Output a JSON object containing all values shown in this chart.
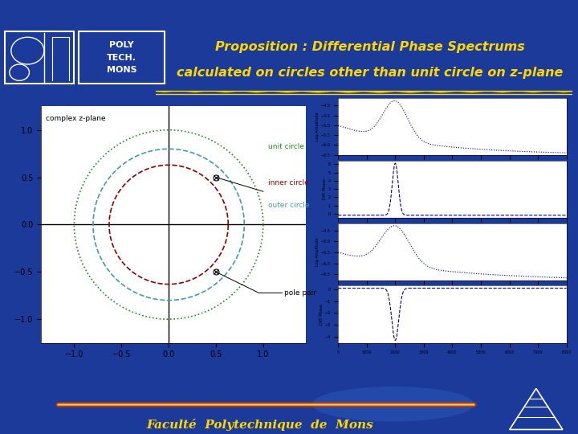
{
  "title_line1": "Proposition : Differential Phase Spectrums",
  "title_line2": "calculated on circles other than unit circle on z-plane",
  "footer_text": "Faculté  Polytechnique  de  Mons",
  "bg_color": "#1b3a9a",
  "header_dark": "#0d2070",
  "title_color": "#ffd700",
  "footer_color": "#ffd700",
  "unit_circle_color": "#228B22",
  "inner_circle_color": "#8B0000",
  "outer_circle_color": "#4499aa",
  "decoration_color": "#ffd700",
  "unit_circle_r": 1.0,
  "inner_circle_r": 0.63,
  "outer_circle_r": 0.8,
  "pole1": [
    0.5,
    0.5
  ],
  "pole2": [
    0.5,
    -0.5
  ],
  "zplane_xlim": [
    -1.3,
    1.3
  ],
  "zplane_ylim": [
    -1.2,
    1.2
  ]
}
